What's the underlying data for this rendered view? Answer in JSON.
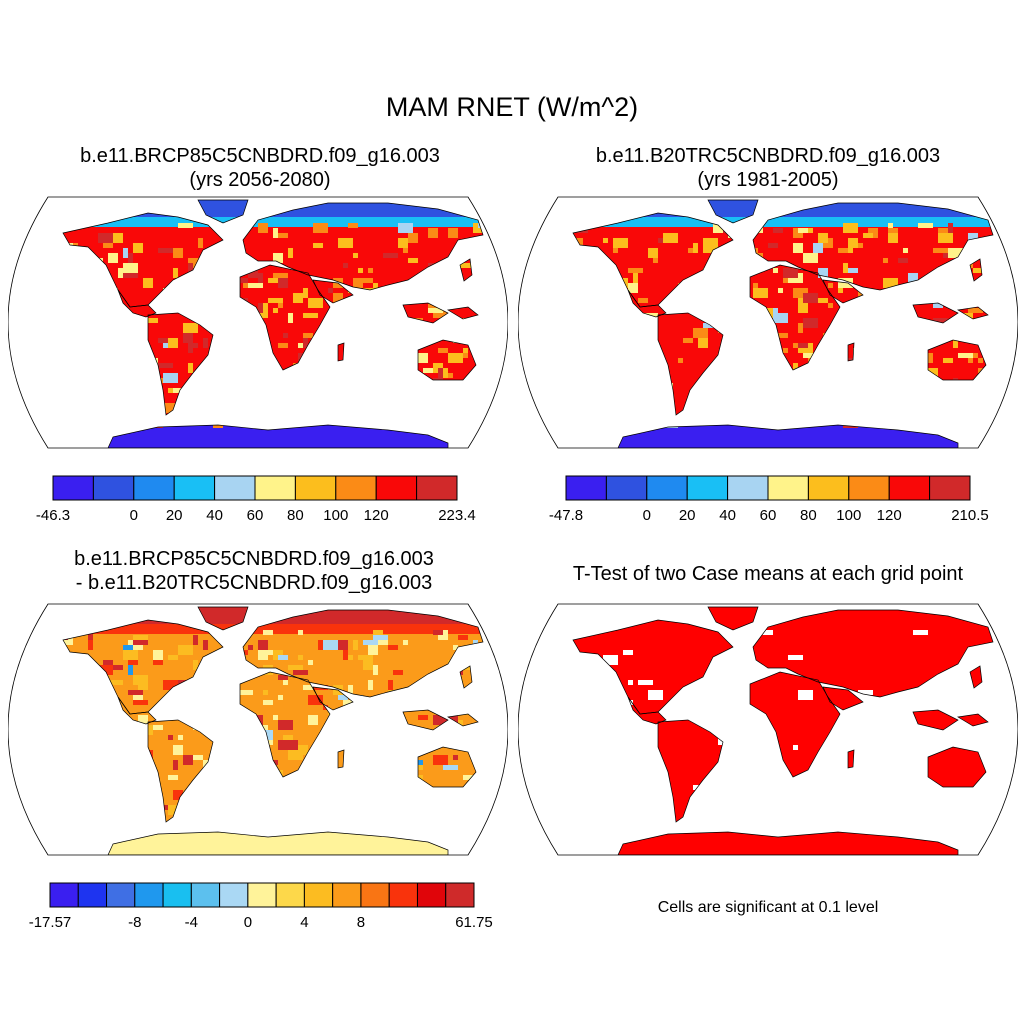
{
  "main_title": "MAM RNET (W/m^2)",
  "panels": [
    {
      "title_line1": "b.e11.BRCP85C5CNBDRD.f09_g16.003",
      "title_line2": "(yrs 2056-2080)",
      "colorbar": {
        "colors": [
          "#3a1ff0",
          "#2f52e0",
          "#1f8af0",
          "#19bff5",
          "#a8d4f2",
          "#fff38a",
          "#fcbe1d",
          "#fb8b16",
          "#f90808",
          "#d1292a"
        ],
        "labels": [
          "-46.3",
          "0",
          "20",
          "40",
          "60",
          "80",
          "100",
          "120",
          "223.4"
        ],
        "label_edges": [
          0,
          2,
          3,
          4,
          5,
          6,
          7,
          8,
          10
        ]
      }
    },
    {
      "title_line1": "b.e11.B20TRC5CNBDRD.f09_g16.003",
      "title_line2": "(yrs 1981-2005)",
      "colorbar": {
        "colors": [
          "#3a1ff0",
          "#2f52e0",
          "#1f8af0",
          "#19bff5",
          "#a8d4f2",
          "#fff38a",
          "#fcbe1d",
          "#fb8b16",
          "#f90808",
          "#d1292a"
        ],
        "labels": [
          "-47.8",
          "0",
          "20",
          "40",
          "60",
          "80",
          "100",
          "120",
          "210.5"
        ],
        "label_edges": [
          0,
          2,
          3,
          4,
          5,
          6,
          7,
          8,
          10
        ]
      }
    },
    {
      "title_line1": "b.e11.BRCP85C5CNBDRD.f09_g16.003",
      "title_line2": "- b.e11.B20TRC5CNBDRD.f09_g16.003",
      "colorbar": {
        "colors": [
          "#3a1ff0",
          "#1e34f0",
          "#3f6fe4",
          "#1f98ee",
          "#19bff0",
          "#5cc0ee",
          "#aad8f4",
          "#fff39a",
          "#fdd84a",
          "#fcbc21",
          "#fb9b1a",
          "#f97514",
          "#f9330c",
          "#e0050a",
          "#cf2a2a"
        ],
        "labels": [
          "-17.57",
          "-8",
          "-4",
          "0",
          "4",
          "8",
          "61.75"
        ],
        "label_edges": [
          0,
          3,
          5,
          7,
          9,
          11,
          15
        ]
      }
    },
    {
      "title_line1": "T-Test of two Case means at each grid point",
      "title_line2": "",
      "note": "Cells are significant at 0.1 level"
    }
  ]
}
